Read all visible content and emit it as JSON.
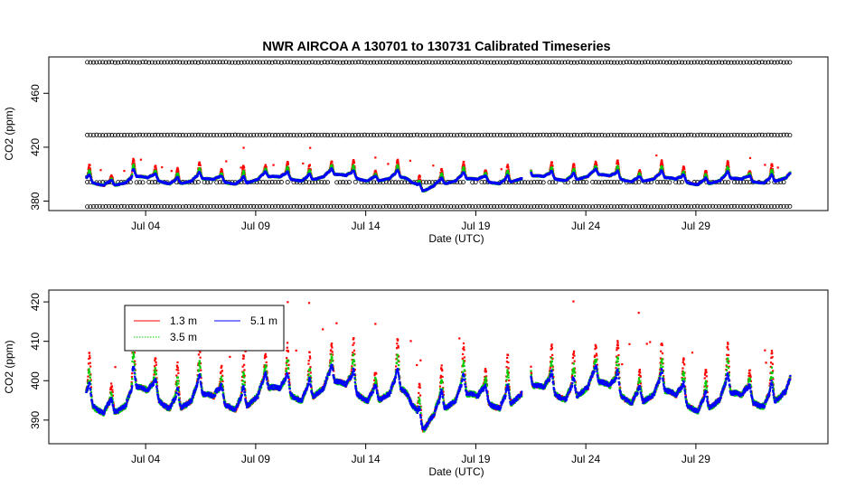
{
  "chart_data": [
    {
      "type": "scatter",
      "title": "NWR   AIRCOA  A    130701  to  130731   Calibrated Timeseries",
      "xlabel": "Date (UTC)",
      "ylabel": "CO2 (ppm)",
      "x_ticks": [
        "Jul 04",
        "Jul 09",
        "Jul 14",
        "Jul 19",
        "Jul 24",
        "Jul 29"
      ],
      "x_tick_days": [
        4,
        9,
        14,
        19,
        24,
        29
      ],
      "xlim_days": [
        -0.4,
        35
      ],
      "y_ticks": [
        380,
        420,
        460
      ],
      "ylim": [
        373,
        487
      ],
      "reference_levels_ppm": [
        376,
        394,
        429,
        483
      ],
      "series": [
        {
          "name": "1.3 m",
          "color": "#ff0000"
        },
        {
          "name": "3.5 m",
          "color": "#00cc00"
        },
        {
          "name": "5.1 m",
          "color": "#0000ff"
        },
        {
          "name": "standards",
          "color": "#000000"
        }
      ]
    },
    {
      "type": "scatter",
      "xlabel": "Date (UTC)",
      "ylabel": "CO2 (ppm)",
      "x_ticks": [
        "Jul 04",
        "Jul 09",
        "Jul 14",
        "Jul 19",
        "Jul 24",
        "Jul 29"
      ],
      "x_tick_days": [
        4,
        9,
        14,
        19,
        24,
        29
      ],
      "xlim_days": [
        -0.4,
        35
      ],
      "y_ticks": [
        390,
        400,
        410,
        420
      ],
      "ylim": [
        384,
        423
      ],
      "legend": [
        {
          "name": "1.3 m",
          "color": "#ff0000"
        },
        {
          "name": "3.5 m",
          "color": "#00cc00"
        },
        {
          "name": "5.1 m",
          "color": "#0000ff"
        }
      ],
      "legend_position": "top-left",
      "series": [
        {
          "name": "1.3 m",
          "color": "#ff0000"
        },
        {
          "name": "3.5 m",
          "color": "#00cc00"
        },
        {
          "name": "5.1 m",
          "color": "#0000ff"
        }
      ],
      "data_start_day": 1.3,
      "data_end_day": 33.3,
      "data_gaps_days": [
        [
          21.1,
          21.5
        ]
      ]
    }
  ]
}
